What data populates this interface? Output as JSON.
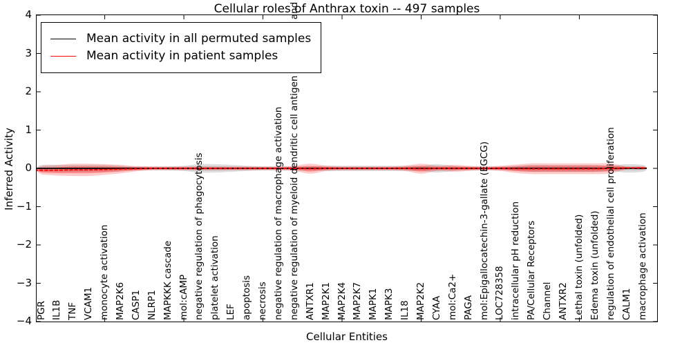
{
  "chart_data": {
    "type": "violin",
    "title": "Cellular roles of Anthrax toxin -- 497 samples",
    "xlabel": "Cellular Entities",
    "ylabel": "Inferred Activity",
    "ylim": [
      -4,
      4
    ],
    "yticks": [
      4,
      3,
      2,
      1,
      0,
      -1,
      -2,
      -3,
      -4
    ],
    "grid": false,
    "legend_position": "upper left",
    "categories": [
      "PGR",
      "IL1B",
      "TNF",
      "VCAM1",
      "monocyte activation",
      "MAP2K6",
      "CASP1",
      "NLRP1",
      "MAPKKK cascade",
      "mol:cAMP",
      "negative regulation of phagocytosis",
      "platelet activation",
      "LEF",
      "apoptosis",
      "necrosis",
      "negative regulation of macrophage activation",
      "negative regulation of myeloid dendritic cell antigen processing and presentation",
      "ANTXR1",
      "MAP2K1",
      "MAP2K4",
      "MAP2K7",
      "MAPK1",
      "MAPK3",
      "IL18",
      "MAP2K2",
      "CYAA",
      "mol:Ca2+",
      "PAGA",
      "mol:Epigallocatechin-3-gallate (EGCG)",
      "LOC728358",
      "intracellular pH reduction",
      "PA/Cellular Receptors",
      "Channel",
      "ANTXR2",
      "Lethal toxin (unfolded)",
      "Edema toxin (unfolded)",
      "regulation of endothelial cell proliferation",
      "CALM1",
      "macrophage activation"
    ],
    "series": [
      {
        "name": "Mean activity in all permuted samples",
        "color": "#000000",
        "band_color": "rgba(0,0,0,0.13)",
        "band_color_inner": "rgba(0,0,0,0.07)",
        "line_style": "solid",
        "mean": [
          0,
          0,
          0,
          0,
          0,
          0,
          0,
          0,
          0,
          0,
          0,
          0,
          0,
          0,
          0,
          0,
          0,
          0,
          0,
          0,
          0,
          0,
          0,
          0,
          0,
          0,
          0,
          0,
          0,
          0,
          0,
          0,
          0,
          0,
          0,
          0,
          0,
          0,
          0
        ],
        "spread": [
          0.09,
          0.09,
          0.09,
          0.09,
          0.09,
          0.07,
          0.05,
          0.05,
          0.05,
          0.07,
          0.11,
          0.11,
          0.09,
          0.07,
          0.05,
          0.05,
          0.05,
          0.05,
          0.07,
          0.07,
          0.07,
          0.07,
          0.07,
          0.07,
          0.07,
          0.11,
          0.07,
          0.05,
          0.05,
          0.05,
          0.07,
          0.09,
          0.09,
          0.09,
          0.09,
          0.09,
          0.07,
          0.11,
          0.09
        ]
      },
      {
        "name": "Mean activity in patient samples",
        "color": "#ff0000",
        "band_color": "rgba(255,0,0,0.20)",
        "band_color_inner": "rgba(255,0,0,0.30)",
        "line_style": "solid",
        "mean": [
          -0.05,
          -0.05,
          -0.04,
          -0.04,
          -0.03,
          -0.02,
          -0.01,
          0,
          0,
          0,
          0,
          0,
          0,
          0,
          0,
          0,
          0,
          -0.01,
          0,
          0,
          0,
          0,
          0,
          0,
          -0.01,
          0,
          0,
          0,
          0,
          0,
          -0.01,
          -0.01,
          -0.01,
          -0.01,
          -0.01,
          -0.01,
          0,
          0.01,
          0.01
        ],
        "spread": [
          0.11,
          0.14,
          0.16,
          0.16,
          0.14,
          0.11,
          0.07,
          0.05,
          0.05,
          0.05,
          0.05,
          0.05,
          0.05,
          0.05,
          0.05,
          0.05,
          0.07,
          0.13,
          0.07,
          0.05,
          0.05,
          0.05,
          0.05,
          0.07,
          0.13,
          0.07,
          0.09,
          0.07,
          0.05,
          0.07,
          0.11,
          0.14,
          0.14,
          0.14,
          0.14,
          0.14,
          0.13,
          0.04,
          0.04
        ]
      }
    ]
  }
}
